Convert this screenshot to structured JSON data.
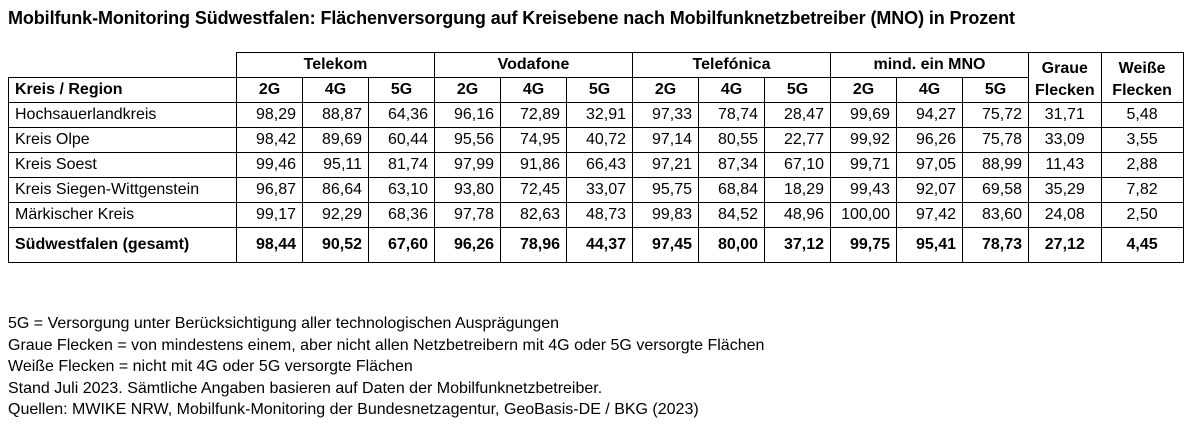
{
  "title": "Mobilfunk-Monitoring Südwestfalen: Flächenversorgung auf Kreisebene nach Mobilfunknetzbetreiber (MNO) in Prozent",
  "table": {
    "groups": [
      "Telekom",
      "Vodafone",
      "Telefónica",
      "mind. ein MNO"
    ],
    "region_header": "Kreis / Region",
    "sub_headers": [
      "2G",
      "4G",
      "5G"
    ],
    "graue_header": [
      "Graue",
      "Flecken"
    ],
    "weisse_header": [
      "Weiße",
      "Flecken"
    ],
    "rows": [
      {
        "name": "Hochsauerlandkreis",
        "values": [
          "98,29",
          "88,87",
          "64,36",
          "96,16",
          "72,89",
          "32,91",
          "97,33",
          "78,74",
          "28,47",
          "99,69",
          "94,27",
          "75,72",
          "31,71",
          "5,48"
        ]
      },
      {
        "name": "Kreis Olpe",
        "values": [
          "98,42",
          "89,69",
          "60,44",
          "95,56",
          "74,95",
          "40,72",
          "97,14",
          "80,55",
          "22,77",
          "99,92",
          "96,26",
          "75,78",
          "33,09",
          "3,55"
        ]
      },
      {
        "name": "Kreis Soest",
        "values": [
          "99,46",
          "95,11",
          "81,74",
          "97,99",
          "91,86",
          "66,43",
          "97,21",
          "87,34",
          "67,10",
          "99,71",
          "97,05",
          "88,99",
          "11,43",
          "2,88"
        ]
      },
      {
        "name": "Kreis Siegen-Wittgenstein",
        "values": [
          "96,87",
          "86,64",
          "63,10",
          "93,80",
          "72,45",
          "33,07",
          "95,75",
          "68,84",
          "18,29",
          "99,43",
          "92,07",
          "69,58",
          "35,29",
          "7,82"
        ]
      },
      {
        "name": "Märkischer Kreis",
        "values": [
          "99,17",
          "92,29",
          "68,36",
          "97,78",
          "82,63",
          "48,73",
          "99,83",
          "84,52",
          "48,96",
          "100,00",
          "97,42",
          "83,60",
          "24,08",
          "2,50"
        ]
      }
    ],
    "total": {
      "name": "Südwestfalen (gesamt)",
      "values": [
        "98,44",
        "90,52",
        "67,60",
        "96,26",
        "78,96",
        "44,37",
        "97,45",
        "80,00",
        "37,12",
        "99,75",
        "95,41",
        "78,73",
        "27,12",
        "4,45"
      ]
    }
  },
  "notes": [
    "5G = Versorgung unter Berücksichtigung aller technologischen Ausprägungen",
    "Graue Flecken = von mindestens einem, aber nicht allen Netzbetreibern mit 4G oder 5G versorgte Flächen",
    "Weiße Flecken = nicht mit 4G oder 5G versorgte Flächen",
    "Stand Juli 2023. Sämtliche Angaben basieren auf Daten der Mobilfunknetzbetreiber.",
    "Quellen: MWIKE NRW, Mobilfunk-Monitoring der Bundesnetzagentur, GeoBasis-DE / BKG (2023)"
  ]
}
